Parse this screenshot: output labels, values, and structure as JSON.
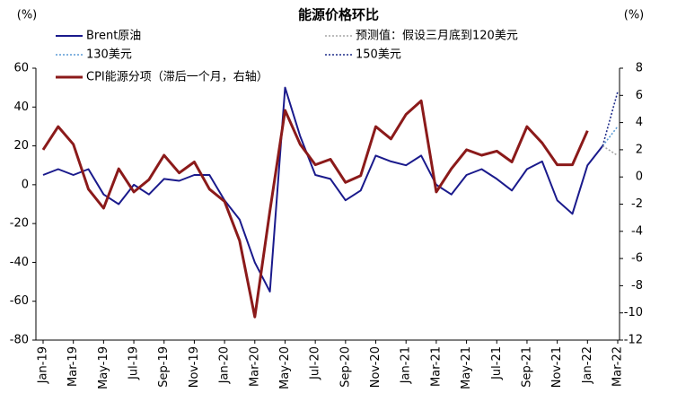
{
  "chart_data": {
    "type": "line",
    "title": "能源价格环比",
    "y_label": "(%)",
    "y2_label": "(%)",
    "categories": [
      "Jan-19",
      null,
      "Mar-19",
      null,
      "May-19",
      null,
      "Jul-19",
      null,
      "Sep-19",
      null,
      "Nov-19",
      null,
      "Jan-20",
      null,
      "Mar-20",
      null,
      "May-20",
      null,
      "Jul-20",
      null,
      "Sep-20",
      null,
      "Nov-20",
      null,
      "Jan-21",
      null,
      "Mar-21",
      null,
      "May-21",
      null,
      "Jul-21",
      null,
      "Sep-21",
      null,
      "Nov-21",
      null,
      "Jan-22",
      null,
      "Mar-22"
    ],
    "series": [
      {
        "name": "Brent原油",
        "color": "#1a1a8c",
        "style": "solid",
        "values": [
          5,
          8,
          5,
          8,
          -5,
          -10,
          0,
          -5,
          3,
          2,
          5,
          5,
          -8,
          -18,
          -40,
          -55,
          50,
          25,
          5,
          3,
          -8,
          -3,
          15,
          12,
          10,
          15,
          0,
          -5,
          5,
          8,
          3,
          -3,
          8,
          12,
          -8,
          -15,
          10,
          20,
          null
        ]
      },
      {
        "name": "预测值：假设三月底到120美元",
        "color": "#a6a6a6",
        "style": "dotted",
        "values": [
          null,
          null,
          null,
          null,
          null,
          null,
          null,
          null,
          null,
          null,
          null,
          null,
          null,
          null,
          null,
          null,
          null,
          null,
          null,
          null,
          null,
          null,
          null,
          null,
          null,
          null,
          null,
          null,
          null,
          null,
          null,
          null,
          null,
          null,
          null,
          null,
          null,
          20,
          15
        ]
      },
      {
        "name": "130美元",
        "color": "#5b9bd5",
        "style": "dotted",
        "values": [
          null,
          null,
          null,
          null,
          null,
          null,
          null,
          null,
          null,
          null,
          null,
          null,
          null,
          null,
          null,
          null,
          null,
          null,
          null,
          null,
          null,
          null,
          null,
          null,
          null,
          null,
          null,
          null,
          null,
          null,
          null,
          null,
          null,
          null,
          null,
          null,
          null,
          20,
          30
        ]
      },
      {
        "name": "150美元",
        "color": "#1f2d8a",
        "style": "dotted",
        "values": [
          null,
          null,
          null,
          null,
          null,
          null,
          null,
          null,
          null,
          null,
          null,
          null,
          null,
          null,
          null,
          null,
          null,
          null,
          null,
          null,
          null,
          null,
          null,
          null,
          null,
          null,
          null,
          null,
          null,
          null,
          null,
          null,
          null,
          null,
          null,
          null,
          null,
          20,
          48
        ]
      },
      {
        "name": "CPI能源分项（滞后一个月，右轴）",
        "color": "#8b1a1a",
        "style": "thick",
        "axis": "y2",
        "values": [
          2.0,
          3.7,
          2.4,
          -0.9,
          -2.3,
          0.6,
          -1.1,
          -0.2,
          1.6,
          0.3,
          1.1,
          -0.9,
          -1.8,
          -4.7,
          -10.3,
          -2.5,
          4.9,
          2.4,
          0.9,
          1.3,
          -0.4,
          0.1,
          3.7,
          2.8,
          4.6,
          5.6,
          -1.1,
          0.6,
          2.0,
          1.6,
          1.9,
          1.1,
          3.7,
          2.5,
          0.9,
          0.9,
          3.4,
          null,
          null
        ]
      }
    ],
    "ylim": [
      -80,
      60
    ],
    "yticks": [
      -80,
      -60,
      -40,
      -20,
      0,
      20,
      40,
      60
    ],
    "y2lim": [
      -12,
      8
    ],
    "y2ticks": [
      -12,
      -10,
      -8,
      -6,
      -4,
      -2,
      0,
      2,
      4,
      6,
      8
    ]
  }
}
